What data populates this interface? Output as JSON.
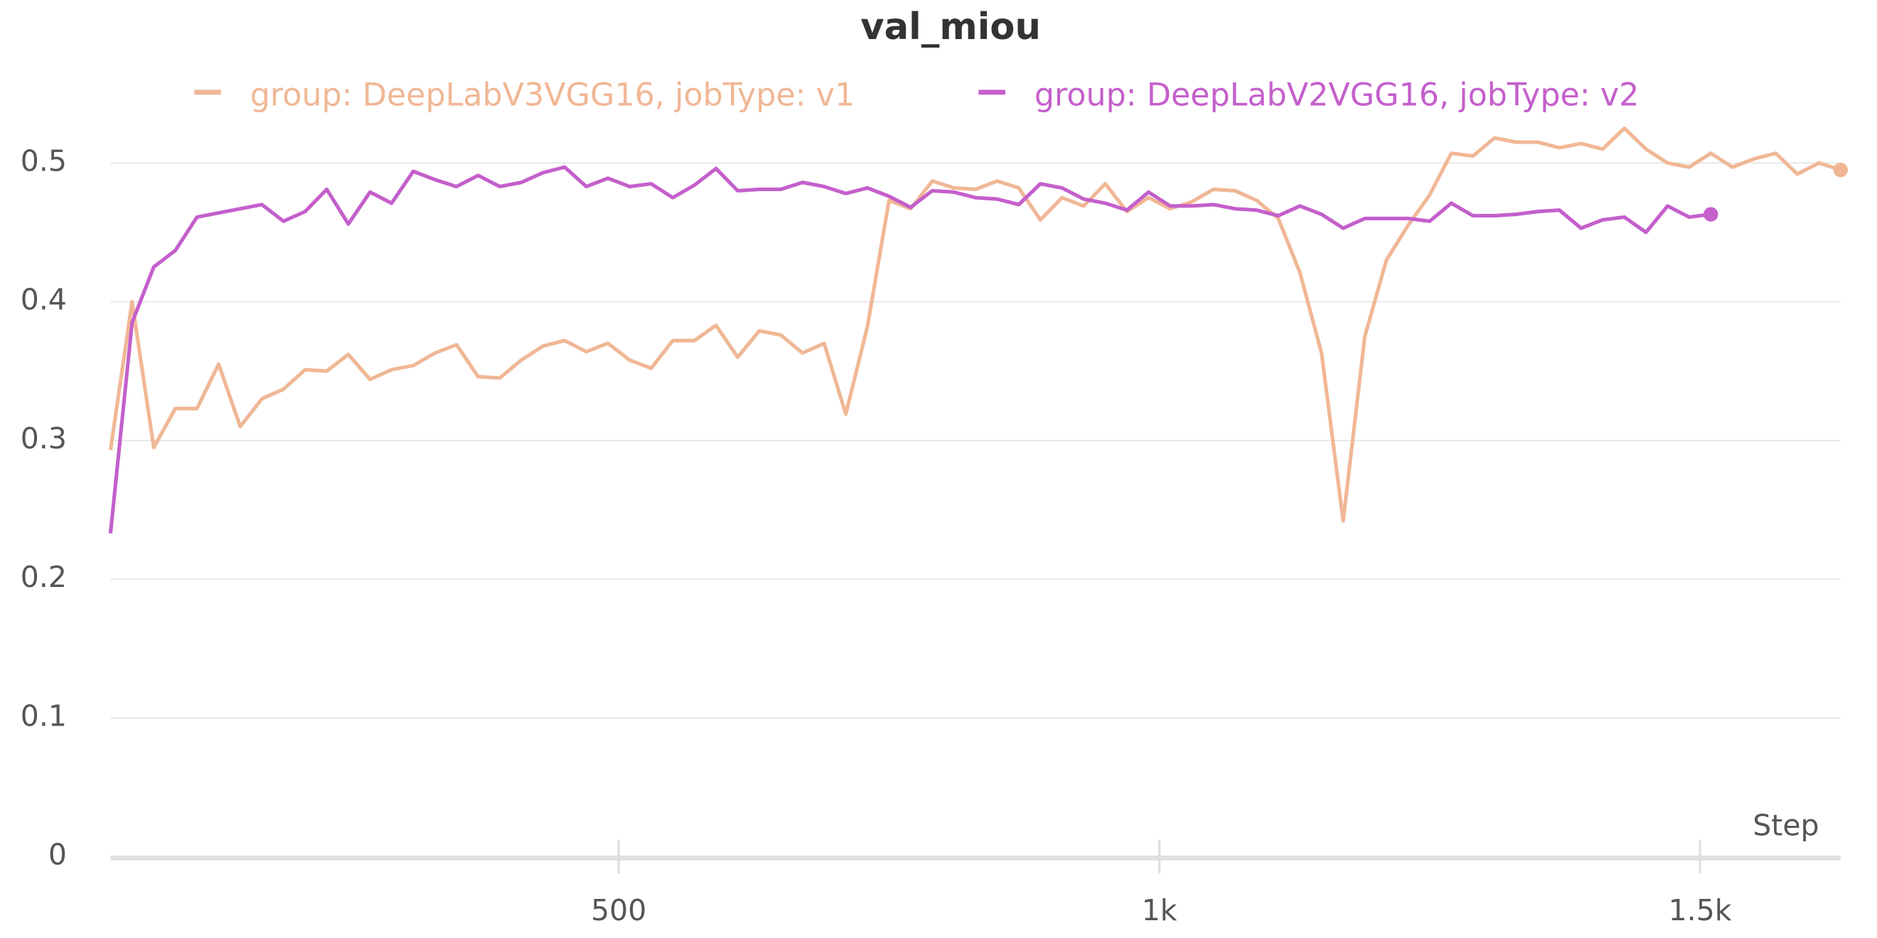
{
  "chart_data": {
    "type": "line",
    "title": "val_miou",
    "x_label": "Step",
    "xlim": [
      30,
      1630
    ],
    "ylim": [
      0,
      0.53
    ],
    "xticks": [
      500,
      {
        "value": 1000,
        "label": "1k"
      },
      {
        "value": 1500,
        "label": "1.5k"
      }
    ],
    "yticks": [
      0,
      0.1,
      0.2,
      0.3,
      0.4,
      0.5
    ],
    "grid": true,
    "series": [
      {
        "name": "group: DeepLabV3VGG16, jobType: v1",
        "color": "#f0b795",
        "x": [
          30,
          50,
          70,
          90,
          110,
          130,
          150,
          170,
          190,
          210,
          230,
          250,
          270,
          290,
          310,
          330,
          350,
          370,
          390,
          410,
          430,
          450,
          470,
          490,
          510,
          530,
          550,
          570,
          590,
          610,
          630,
          650,
          670,
          690,
          710,
          730,
          750,
          770,
          790,
          810,
          830,
          850,
          870,
          890,
          910,
          930,
          950,
          970,
          990,
          1010,
          1030,
          1050,
          1070,
          1090,
          1110,
          1130,
          1150,
          1170,
          1190,
          1210,
          1230,
          1250,
          1270,
          1290,
          1310,
          1330,
          1350,
          1370,
          1390,
          1410,
          1430,
          1450,
          1470,
          1490,
          1510,
          1530,
          1550,
          1570,
          1590,
          1610,
          1630
        ],
        "values": [
          0.293,
          0.4,
          0.295,
          0.323,
          0.323,
          0.355,
          0.31,
          0.33,
          0.337,
          0.351,
          0.35,
          0.362,
          0.344,
          0.351,
          0.354,
          0.363,
          0.369,
          0.346,
          0.345,
          0.358,
          0.368,
          0.372,
          0.364,
          0.37,
          0.358,
          0.352,
          0.372,
          0.372,
          0.383,
          0.36,
          0.379,
          0.376,
          0.363,
          0.37,
          0.319,
          0.382,
          0.473,
          0.467,
          0.487,
          0.482,
          0.481,
          0.487,
          0.482,
          0.459,
          0.475,
          0.469,
          0.485,
          0.465,
          0.475,
          0.467,
          0.472,
          0.481,
          0.48,
          0.473,
          0.46,
          0.421,
          0.363,
          0.242,
          0.375,
          0.43,
          0.455,
          0.477,
          0.507,
          0.505,
          0.518,
          0.515,
          0.515,
          0.511,
          0.514,
          0.51,
          0.525,
          0.51,
          0.5,
          0.497,
          0.507,
          0.497,
          0.503,
          0.507,
          0.492,
          0.5,
          0.495
        ]
      },
      {
        "name": "group: DeepLabV2VGG16, jobType: v2",
        "color": "#c45fcb",
        "x": [
          30,
          50,
          70,
          90,
          110,
          130,
          150,
          170,
          190,
          210,
          230,
          250,
          270,
          290,
          310,
          330,
          350,
          370,
          390,
          410,
          430,
          450,
          470,
          490,
          510,
          530,
          550,
          570,
          590,
          610,
          630,
          650,
          670,
          690,
          710,
          730,
          750,
          770,
          790,
          810,
          830,
          850,
          870,
          890,
          910,
          930,
          950,
          970,
          990,
          1010,
          1030,
          1050,
          1070,
          1090,
          1110,
          1130,
          1150,
          1170,
          1190,
          1210,
          1230,
          1250,
          1270,
          1290,
          1310,
          1330,
          1350,
          1370,
          1390,
          1410,
          1430,
          1450,
          1470,
          1490,
          1510
        ],
        "values": [
          0.233,
          0.385,
          0.425,
          0.437,
          0.461,
          0.464,
          0.467,
          0.47,
          0.458,
          0.465,
          0.481,
          0.456,
          0.479,
          0.471,
          0.494,
          0.488,
          0.483,
          0.491,
          0.483,
          0.486,
          0.493,
          0.497,
          0.483,
          0.489,
          0.483,
          0.485,
          0.475,
          0.484,
          0.496,
          0.48,
          0.481,
          0.481,
          0.486,
          0.483,
          0.478,
          0.482,
          0.476,
          0.468,
          0.48,
          0.479,
          0.475,
          0.474,
          0.47,
          0.485,
          0.482,
          0.474,
          0.471,
          0.466,
          0.479,
          0.469,
          0.469,
          0.47,
          0.467,
          0.466,
          0.462,
          0.469,
          0.463,
          0.453,
          0.46,
          0.46,
          0.46,
          0.458,
          0.471,
          0.462,
          0.462,
          0.463,
          0.465,
          0.466,
          0.453,
          0.459,
          0.461,
          0.45,
          0.469,
          0.461,
          0.463
        ]
      }
    ]
  }
}
